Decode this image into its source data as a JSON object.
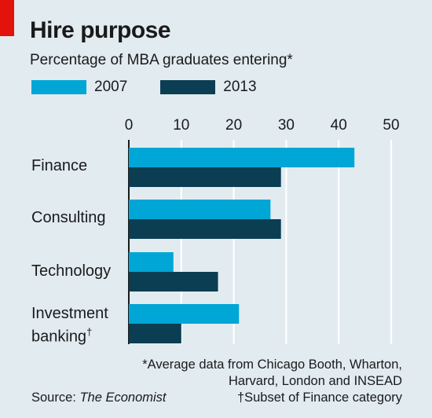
{
  "title": "Hire purpose",
  "subtitle": "Percentage of MBA graduates entering*",
  "colors": {
    "2007": "#00a6d6",
    "2013": "#0b3e52",
    "background": "#e1ebf0",
    "accent": "#e3120b"
  },
  "chart_data": {
    "type": "bar",
    "orientation": "horizontal",
    "categories": [
      "Finance",
      "Consulting",
      "Technology",
      "Investment banking†"
    ],
    "category_lines": [
      [
        "Finance"
      ],
      [
        "Consulting"
      ],
      [
        "Technology"
      ],
      [
        "Investment",
        "banking†"
      ]
    ],
    "series": [
      {
        "name": "2007",
        "values": [
          43,
          27,
          8.5,
          21
        ]
      },
      {
        "name": "2013",
        "values": [
          29,
          29,
          17,
          10
        ]
      }
    ],
    "x_ticks": [
      "0",
      "10",
      "20",
      "30",
      "40",
      "50"
    ],
    "xlim": [
      0,
      50
    ],
    "tick_position": "top",
    "grid": true,
    "legend_placement": "top-left"
  },
  "footnote_lines": [
    "*Average data from Chicago Booth, Wharton,",
    "Harvard, London and INSEAD",
    "†Subset of Finance category"
  ],
  "source": {
    "prefix": "Source: ",
    "name": "The Economist"
  }
}
